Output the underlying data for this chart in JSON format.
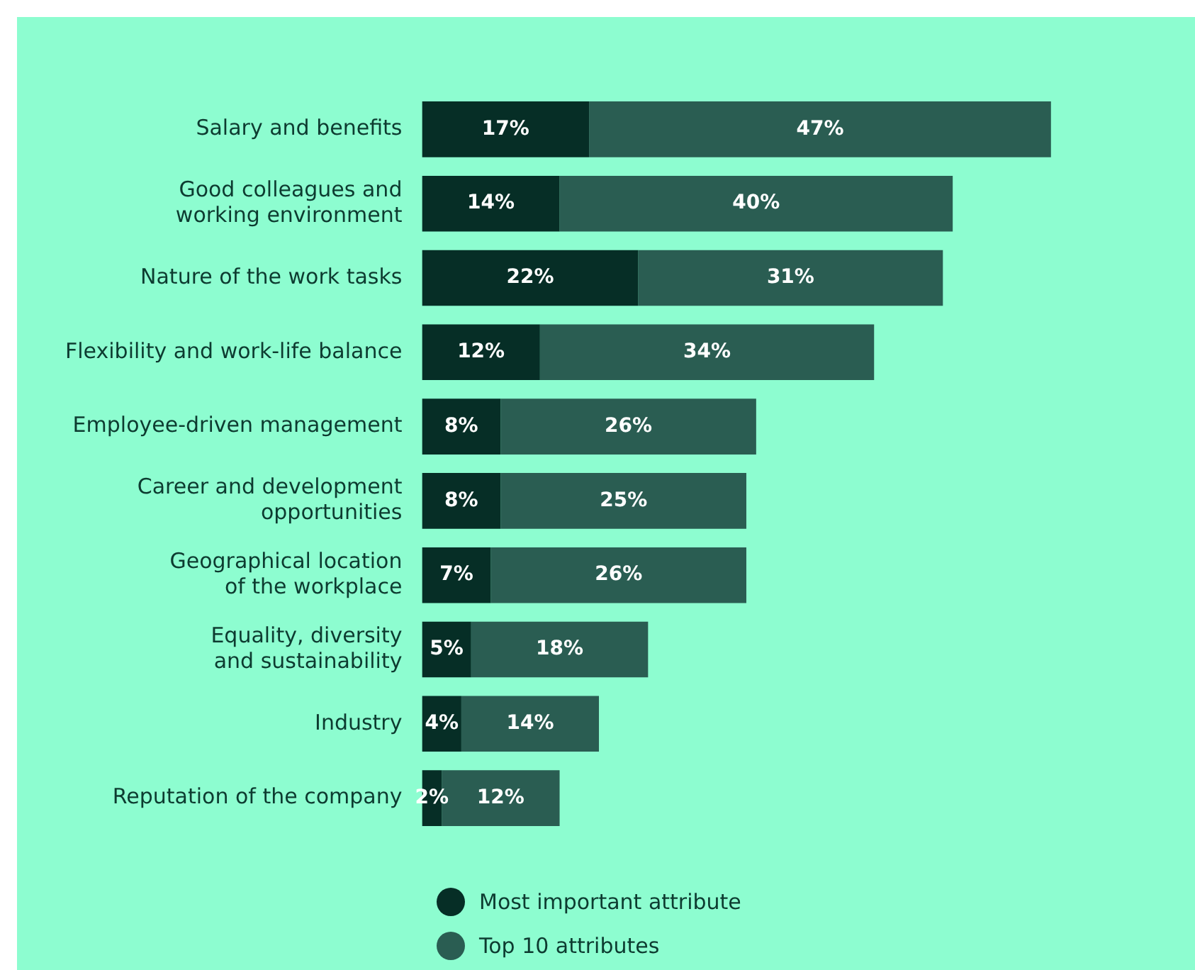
{
  "chart_data": {
    "type": "bar",
    "orientation": "horizontal",
    "stacked": true,
    "tick_labels": "y",
    "legend": "bottom",
    "categories": [
      "Salary and benefits",
      "Good colleagues and\nworking environment",
      "Nature of the work tasks",
      "Flexibility and work-life balance",
      "Employee-driven management",
      "Career and development\nopportunities",
      "Geographical location\nof the workplace",
      "Equality, diversity\nand sustainability",
      "Industry",
      "Reputation of the company"
    ],
    "series": [
      {
        "name": "Most important attribute",
        "color": "#062e26",
        "values": [
          17,
          14,
          22,
          12,
          8,
          8,
          7,
          5,
          4,
          2
        ],
        "value_labels": [
          "17%",
          "14%",
          "22%",
          "12%",
          "8%",
          "8%",
          "7%",
          "5%",
          "4%",
          "2%"
        ]
      },
      {
        "name": "Top 10 attributes",
        "color": "#2a5d52",
        "values": [
          47,
          40,
          31,
          34,
          26,
          25,
          26,
          18,
          14,
          12
        ],
        "value_labels": [
          "47%",
          "40%",
          "31%",
          "34%",
          "26%",
          "25%",
          "26%",
          "18%",
          "14%",
          "12%"
        ]
      }
    ]
  }
}
